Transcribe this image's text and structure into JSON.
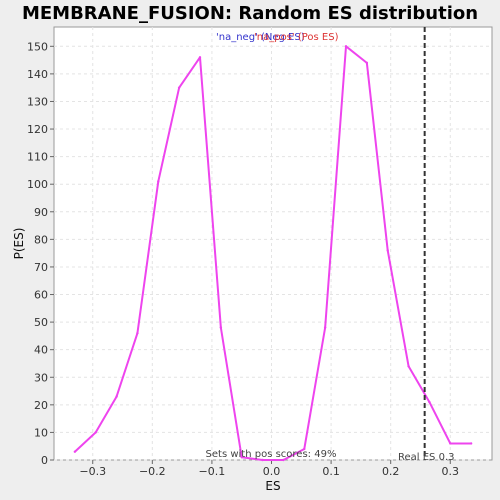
{
  "chart_data": {
    "type": "line",
    "title": "MEMBRANE_FUSION: Random ES distribution",
    "xlabel": "ES",
    "ylabel": "P(ES)",
    "xlim": [
      -0.365,
      0.37
    ],
    "ylim": [
      0,
      157
    ],
    "xticks": [
      -0.3,
      -0.2,
      -0.1,
      0.0,
      0.1,
      0.2,
      0.3
    ],
    "xtick_labels": [
      "−0.3",
      "−0.2",
      "−0.1",
      "0.0",
      "0.1",
      "0.2",
      "0.3"
    ],
    "yticks": [
      0,
      10,
      20,
      30,
      40,
      50,
      60,
      70,
      80,
      90,
      100,
      110,
      120,
      130,
      140,
      150
    ],
    "grid": true,
    "legend": {
      "neg_label": "'na_neg' (Neg ES)",
      "pos_label": "'na_pos' (Pos ES)",
      "placement": "top-center"
    },
    "series": [
      {
        "color": "#ee44ee",
        "x": [
          -0.33,
          -0.295,
          -0.26,
          -0.225,
          -0.19,
          -0.155,
          -0.12,
          -0.085,
          -0.05,
          -0.015,
          0.02,
          0.055,
          0.09,
          0.125,
          0.16,
          0.195,
          0.23,
          0.265,
          0.3,
          0.335
        ],
        "y": [
          3,
          10,
          23,
          46,
          101,
          135,
          146,
          48,
          1,
          0,
          0,
          4,
          48,
          150,
          144,
          76,
          34,
          21,
          6,
          6
        ]
      }
    ],
    "vline": {
      "x": 0.257,
      "label": "Real ES 0.3",
      "style": "dashed"
    },
    "annotation": "Sets with pos scores: 49%"
  }
}
